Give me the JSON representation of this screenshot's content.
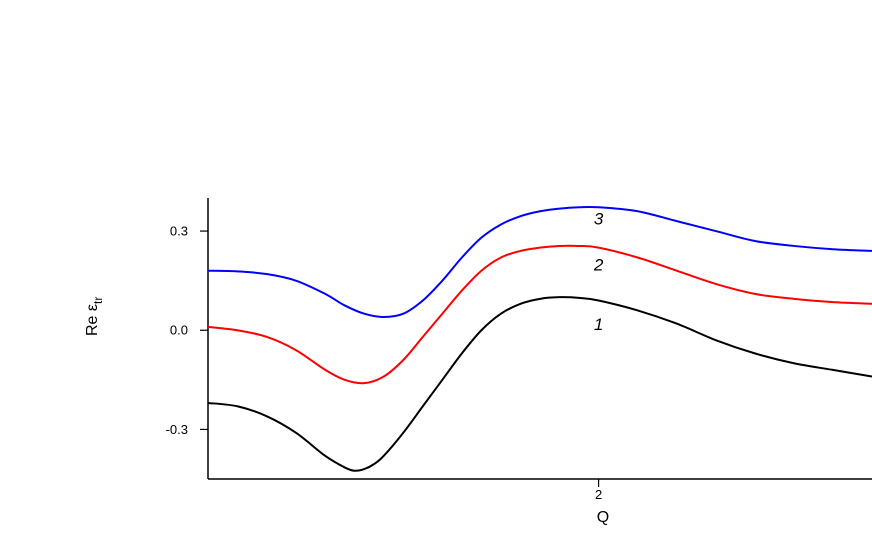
{
  "chart_data": {
    "type": "line",
    "title": "",
    "xlabel": "Q",
    "ylabel": "Re ε",
    "ylabel_sub": "tr",
    "xlim": [
      0,
      3.4
    ],
    "ylim": [
      -0.45,
      0.4
    ],
    "xticks": [
      {
        "value": 2,
        "label": "2"
      }
    ],
    "yticks": [
      {
        "value": 0.3,
        "label": "0.3"
      },
      {
        "value": 0.0,
        "label": "0.0"
      },
      {
        "value": -0.3,
        "label": "-0.3"
      }
    ],
    "grid": false,
    "series": [
      {
        "name": "1",
        "color": "#000000",
        "x": [
          0.0,
          0.15,
          0.3,
          0.45,
          0.6,
          0.7,
          0.75,
          0.8,
          0.85,
          0.9,
          1.0,
          1.1,
          1.2,
          1.3,
          1.4,
          1.5,
          1.6,
          1.7,
          1.8,
          1.9,
          2.0,
          2.2,
          2.4,
          2.6,
          2.8,
          3.0,
          3.2,
          3.4
        ],
        "y": [
          -0.22,
          -0.23,
          -0.26,
          -0.31,
          -0.38,
          -0.415,
          -0.425,
          -0.42,
          -0.405,
          -0.38,
          -0.31,
          -0.23,
          -0.15,
          -0.07,
          0.0,
          0.05,
          0.08,
          0.095,
          0.1,
          0.098,
          0.09,
          0.06,
          0.02,
          -0.03,
          -0.07,
          -0.1,
          -0.12,
          -0.14
        ]
      },
      {
        "name": "2",
        "color": "#ff0000",
        "x": [
          0.0,
          0.15,
          0.3,
          0.45,
          0.6,
          0.7,
          0.8,
          0.9,
          1.0,
          1.1,
          1.2,
          1.3,
          1.4,
          1.5,
          1.6,
          1.7,
          1.8,
          1.9,
          2.0,
          2.2,
          2.4,
          2.6,
          2.8,
          3.0,
          3.2,
          3.4
        ],
        "y": [
          0.01,
          0.0,
          -0.02,
          -0.06,
          -0.12,
          -0.15,
          -0.16,
          -0.14,
          -0.09,
          -0.02,
          0.05,
          0.12,
          0.18,
          0.22,
          0.24,
          0.25,
          0.255,
          0.255,
          0.25,
          0.22,
          0.18,
          0.14,
          0.11,
          0.095,
          0.085,
          0.08
        ]
      },
      {
        "name": "3",
        "color": "#0000ff",
        "x": [
          0.0,
          0.15,
          0.3,
          0.45,
          0.6,
          0.7,
          0.8,
          0.9,
          1.0,
          1.1,
          1.2,
          1.3,
          1.4,
          1.5,
          1.6,
          1.7,
          1.8,
          1.9,
          2.0,
          2.2,
          2.4,
          2.6,
          2.8,
          3.0,
          3.2,
          3.4
        ],
        "y": [
          0.18,
          0.178,
          0.17,
          0.15,
          0.11,
          0.075,
          0.05,
          0.04,
          0.05,
          0.09,
          0.15,
          0.22,
          0.28,
          0.32,
          0.345,
          0.36,
          0.368,
          0.372,
          0.372,
          0.36,
          0.33,
          0.3,
          0.27,
          0.255,
          0.245,
          0.24
        ]
      }
    ],
    "curve_labels": [
      {
        "text": "1",
        "x": 2.0,
        "y": 0.0
      },
      {
        "text": "2",
        "x": 2.0,
        "y": 0.18
      },
      {
        "text": "3",
        "x": 2.0,
        "y": 0.32
      }
    ]
  }
}
